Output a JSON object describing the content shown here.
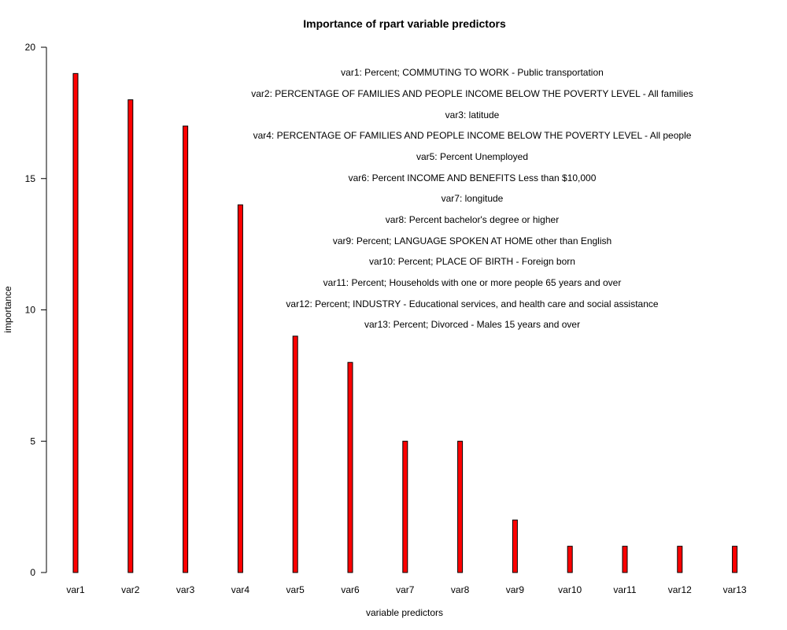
{
  "chart_data": {
    "type": "bar",
    "title": "Importance of rpart variable predictors",
    "xlabel": "variable predictors",
    "ylabel": "importance",
    "ylim": [
      0,
      20
    ],
    "yticks": [
      0,
      5,
      10,
      15,
      20
    ],
    "categories": [
      "var1",
      "var2",
      "var3",
      "var4",
      "var5",
      "var6",
      "var7",
      "var8",
      "var9",
      "var10",
      "var11",
      "var12",
      "var13"
    ],
    "values": [
      19,
      18,
      17,
      14,
      9,
      8,
      5,
      5,
      2,
      1,
      1,
      1,
      1
    ],
    "bar_color": "#ff0000",
    "grid": false,
    "legend_entries": [
      "var1: Percent; COMMUTING TO WORK - Public transportation",
      "var2: PERCENTAGE OF FAMILIES AND PEOPLE INCOME BELOW THE POVERTY LEVEL - All families",
      "var3: latitude",
      "var4: PERCENTAGE OF FAMILIES AND PEOPLE INCOME BELOW THE POVERTY LEVEL - All people",
      "var5: Percent Unemployed",
      "var6: Percent INCOME AND BENEFITS Less than $10,000",
      "var7: longitude",
      "var8: Percent bachelor's degree or higher",
      "var9: Percent; LANGUAGE SPOKEN AT HOME other than English",
      "var10: Percent; PLACE OF BIRTH - Foreign born",
      "var11: Percent; Households with one or more people 65 years and over",
      "var12: Percent; INDUSTRY - Educational services, and health care and social assistance",
      "var13: Percent; Divorced - Males 15 years and over"
    ]
  }
}
